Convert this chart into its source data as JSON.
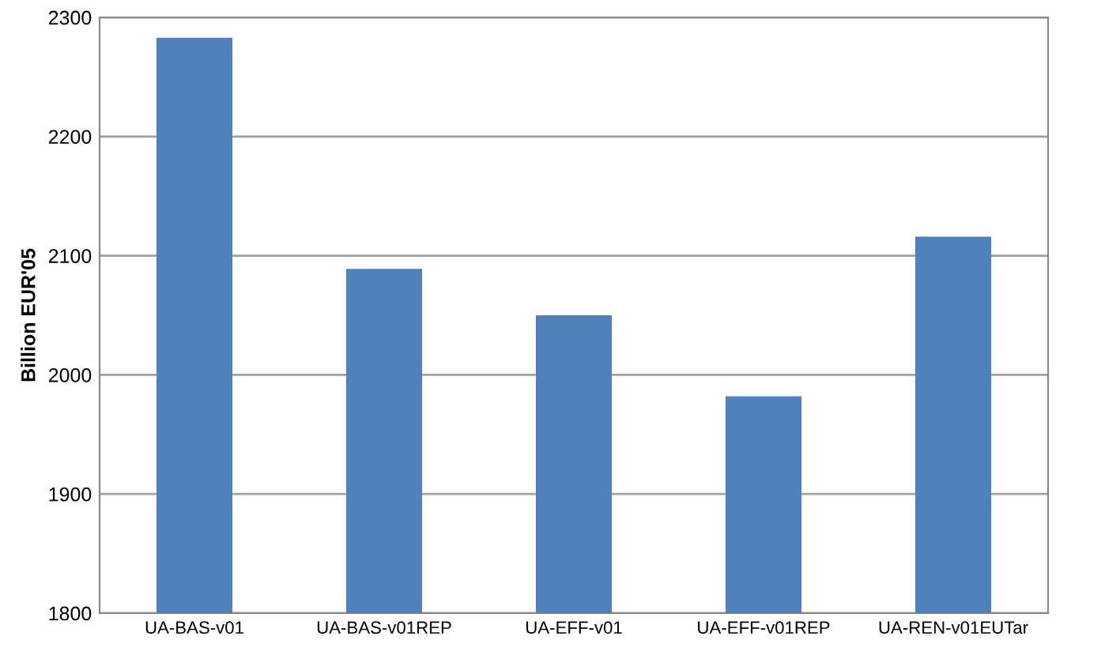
{
  "chart_data": {
    "type": "bar",
    "ylabel": "Billion EUR'05",
    "categories": [
      "UA-BAS-v01",
      "UA-BAS-v01REP",
      "UA-EFF-v01",
      "UA-EFF-v01REP",
      "UA-REN-v01EUTar"
    ],
    "values": [
      2283,
      2089,
      2050,
      1982,
      2116
    ],
    "color": "#4f81bd",
    "ylim": [
      1800,
      2300
    ],
    "yticks": [
      1800,
      1900,
      2000,
      2100,
      2200,
      2300
    ],
    "grid": "y"
  }
}
